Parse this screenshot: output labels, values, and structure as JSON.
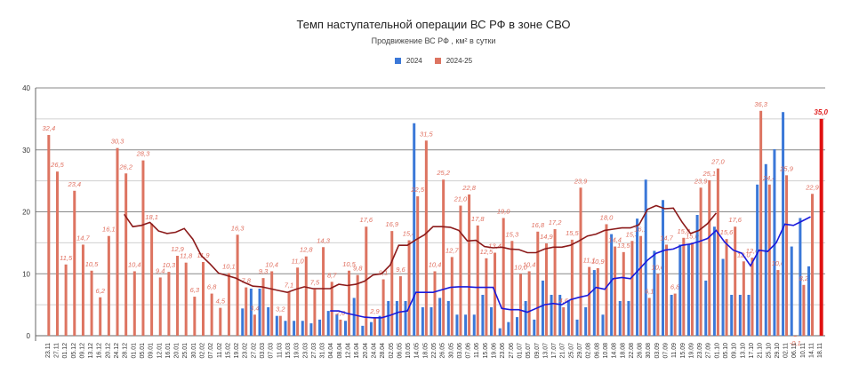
{
  "chart_data": {
    "type": "bar",
    "title": "Темп наступательной операции ВС РФ в зоне СВО",
    "subtitle": "Продвижение ВС РФ , км² в сутки",
    "xlabel": "",
    "ylabel": "",
    "ylim": [
      0,
      40
    ],
    "yticks": [
      0,
      10,
      20,
      30,
      40
    ],
    "grid": true,
    "legend_position": "top-center",
    "colors": {
      "2024": "#3b78d8",
      "2024-25": "#dd7461",
      "ma_2024": "#1a1adc",
      "ma_2024_25": "#8b1a1a",
      "highlight": "#e01010"
    },
    "categories": [
      "23.11",
      "27.11",
      "01.12",
      "05.12",
      "09.12",
      "13.12",
      "16.12",
      "20.12",
      "24.12",
      "28.12",
      "01.01",
      "05.01",
      "09.01",
      "12.01",
      "16.01",
      "20.01",
      "25.01",
      "30.01",
      "02.02",
      "07.02",
      "11.02",
      "15.02",
      "19.02",
      "23.02",
      "27.02",
      "03.03",
      "07.03",
      "11.03",
      "15.03",
      "19.03",
      "23.03",
      "27.03",
      "31.03",
      "04.04",
      "08.04",
      "12.04",
      "16.04",
      "20.04",
      "24.04",
      "28.04",
      "02.05",
      "06.05",
      "10.05",
      "14.05",
      "18.05",
      "22.05",
      "26.05",
      "30.05",
      "03.06",
      "07.06",
      "11.06",
      "15.06",
      "19.06",
      "23.06",
      "27.06",
      "01.07",
      "05.07",
      "09.07",
      "13.07",
      "17.07",
      "21.07",
      "25.07",
      "29.07",
      "02.08",
      "06.08",
      "10.08",
      "14.08",
      "18.08",
      "22.08",
      "26.08",
      "30.08",
      "03.09",
      "07.09",
      "11.09",
      "15.09",
      "19.09",
      "23.09",
      "27.09",
      "01.10",
      "05.10",
      "09.10",
      "13.10",
      "17.10",
      "21.10",
      "25.10",
      "29.10",
      "02.11",
      "06.11",
      "10.11",
      "14.11",
      "18.11"
    ],
    "series": [
      {
        "name": "2024",
        "values": [
          null,
          null,
          null,
          null,
          null,
          null,
          null,
          null,
          null,
          null,
          null,
          null,
          null,
          null,
          null,
          null,
          null,
          null,
          null,
          null,
          null,
          null,
          null,
          4.4,
          7.6,
          7.6,
          4.6,
          3.2,
          2.4,
          2.4,
          2.4,
          2.0,
          2.6,
          4.0,
          3.5,
          2.4,
          6.1,
          1.6,
          2.2,
          3.2,
          5.6,
          5.6,
          5.6,
          34.3,
          4.6,
          4.6,
          6.1,
          5.6,
          3.4,
          3.4,
          3.4,
          6.6,
          4.6,
          1.2,
          2.2,
          3.0,
          5.6,
          2.6,
          8.9,
          6.6,
          6.6,
          5.6,
          2.6,
          4.6,
          10.6,
          3.4,
          16.4,
          5.6,
          5.6,
          18.9,
          25.2,
          13.7,
          21.9,
          6.6,
          14.7,
          14.7,
          19.5,
          8.9,
          17.6,
          12.4,
          6.6,
          6.6,
          6.6,
          24.4,
          27.7,
          30.1,
          36.1,
          14.4,
          19.0,
          11.2
        ]
      },
      {
        "name": "2024-25",
        "values": [
          32.4,
          26.5,
          11.5,
          23.4,
          14.7,
          10.5,
          6.2,
          16.1,
          30.3,
          26.2,
          10.4,
          28.3,
          18.1,
          9.4,
          10.3,
          12.9,
          11.8,
          6.3,
          11.9,
          6.8,
          4.5,
          10.1,
          16.3,
          7.8,
          3.4,
          9.3,
          10.4,
          3.2,
          7.1,
          11.0,
          12.8,
          7.5,
          14.3,
          8.7,
          2.6,
          10.5,
          9.8,
          17.6,
          2.9,
          9.1,
          16.9,
          9.6,
          15.4,
          22.5,
          31.5,
          10.4,
          25.2,
          12.7,
          21.0,
          22.8,
          17.8,
          12.5,
          13.4,
          19.0,
          15.3,
          10.0,
          10.4,
          16.8,
          14.9,
          17.2,
          4.6,
          15.5,
          23.9,
          11.1,
          10.9,
          18.0,
          14.4,
          13.5,
          15.3,
          16.1,
          6.1,
          10.0,
          14.7,
          6.8,
          15.8,
          15.0,
          23.9,
          25.1,
          27.0,
          15.6,
          17.6,
          12.0,
          12.6,
          36.3,
          24.4,
          10.6,
          25.9,
          -0.1,
          8.2,
          22.9,
          35.0
        ]
      }
    ],
    "moving_average": [
      {
        "name": "2024 trend",
        "values": [
          null,
          null,
          null,
          null,
          null,
          null,
          null,
          null,
          null,
          null,
          null,
          null,
          null,
          null,
          null,
          null,
          null,
          null,
          null,
          null,
          null,
          null,
          null,
          null,
          null,
          null,
          null,
          null,
          null,
          null,
          null,
          null,
          null,
          4.0,
          4.0,
          3.6,
          3.3,
          3.0,
          2.9,
          2.9,
          3.3,
          3.8,
          4.0,
          7.0,
          7.0,
          7.0,
          7.4,
          7.8,
          7.9,
          7.9,
          7.8,
          7.8,
          7.8,
          4.4,
          4.2,
          4.2,
          3.8,
          4.4,
          5.0,
          5.2,
          5.0,
          5.8,
          6.2,
          6.5,
          7.8,
          7.5,
          9.2,
          9.4,
          9.2,
          10.7,
          12.2,
          13.3,
          13.8,
          14.0,
          14.6,
          14.8,
          15.2,
          15.7,
          17.0,
          15.1,
          13.8,
          13.3,
          11.3,
          13.8,
          13.6,
          15.0,
          18.0,
          17.8,
          18.5,
          19.2
        ]
      },
      {
        "name": "2024-25 trend",
        "values": [
          null,
          null,
          null,
          null,
          null,
          null,
          null,
          null,
          null,
          19.6,
          17.6,
          17.8,
          18.3,
          16.9,
          16.5,
          16.7,
          17.3,
          15.6,
          12.9,
          11.6,
          10.1,
          9.7,
          9.3,
          8.6,
          8.0,
          7.9,
          7.6,
          7.3,
          7.0,
          7.5,
          7.9,
          7.6,
          7.6,
          7.6,
          8.3,
          8.1,
          8.3,
          8.8,
          9.8,
          10.0,
          11.4,
          14.6,
          14.6,
          15.5,
          16.3,
          17.6,
          17.6,
          17.5,
          17.0,
          15.3,
          15.4,
          14.4,
          14.2,
          14.3,
          14.0,
          13.9,
          13.4,
          13.4,
          14.0,
          14.3,
          14.3,
          14.6,
          15.3,
          16.1,
          16.4,
          17.0,
          17.2,
          17.4,
          17.4,
          17.9,
          20.4,
          21.0,
          20.5,
          20.6,
          18.4,
          16.5,
          17.0,
          18.1,
          19.8
        ]
      }
    ],
    "annotations": {
      "last_value_highlight": "35,0",
      "min_label": "-0,1"
    }
  }
}
